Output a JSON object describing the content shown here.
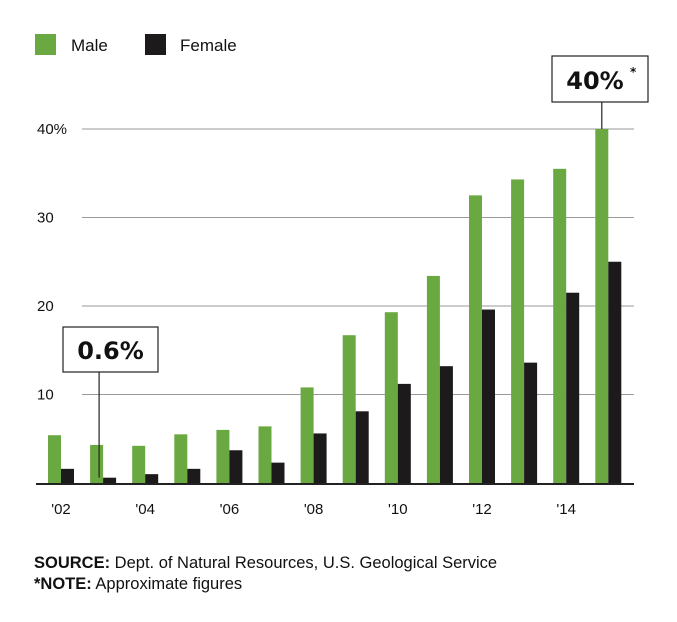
{
  "colors": {
    "male": "#6aa842",
    "female": "#1c1a1b",
    "grid": "#9a9a9a",
    "axis": "#222222"
  },
  "chart_data": {
    "type": "bar",
    "title": "",
    "xlabel": "",
    "ylabel": "",
    "ylim": [
      0,
      40
    ],
    "yticks": [
      10,
      20,
      30,
      40
    ],
    "ytick_labels": [
      "10",
      "20",
      "30",
      "40%"
    ],
    "categories": [
      "2002",
      "2003",
      "2004",
      "2005",
      "2006",
      "2007",
      "2008",
      "2009",
      "2010",
      "2011",
      "2012",
      "2013",
      "2014",
      "2015"
    ],
    "xtick_labels": [
      {
        "index": 0,
        "label": "'02"
      },
      {
        "index": 2,
        "label": "'04"
      },
      {
        "index": 4,
        "label": "'06"
      },
      {
        "index": 6,
        "label": "'08"
      },
      {
        "index": 8,
        "label": "'10"
      },
      {
        "index": 10,
        "label": "'12"
      },
      {
        "index": 12,
        "label": "'14"
      }
    ],
    "series": [
      {
        "name": "Male",
        "values": [
          5.4,
          4.3,
          4.2,
          5.5,
          6.0,
          6.4,
          10.8,
          16.7,
          19.3,
          23.4,
          32.5,
          34.3,
          35.5,
          40.0
        ]
      },
      {
        "name": "Female",
        "values": [
          1.6,
          0.6,
          1.0,
          1.6,
          3.7,
          2.3,
          5.6,
          8.1,
          11.2,
          13.2,
          19.6,
          13.6,
          21.5,
          25.0
        ]
      }
    ],
    "legend": "top-left",
    "grid": true,
    "annotations": [
      {
        "text": "0.6%",
        "series": "Female",
        "index": 1,
        "suffix": ""
      },
      {
        "text": "40%",
        "series": "Male",
        "index": 13,
        "suffix": "*"
      }
    ]
  },
  "footer": {
    "source_label": "SOURCE:",
    "source_text": " Dept. of Natural Resources, U.S. Geological Service",
    "note_label": "*NOTE:",
    "note_text": " Approximate figures"
  }
}
